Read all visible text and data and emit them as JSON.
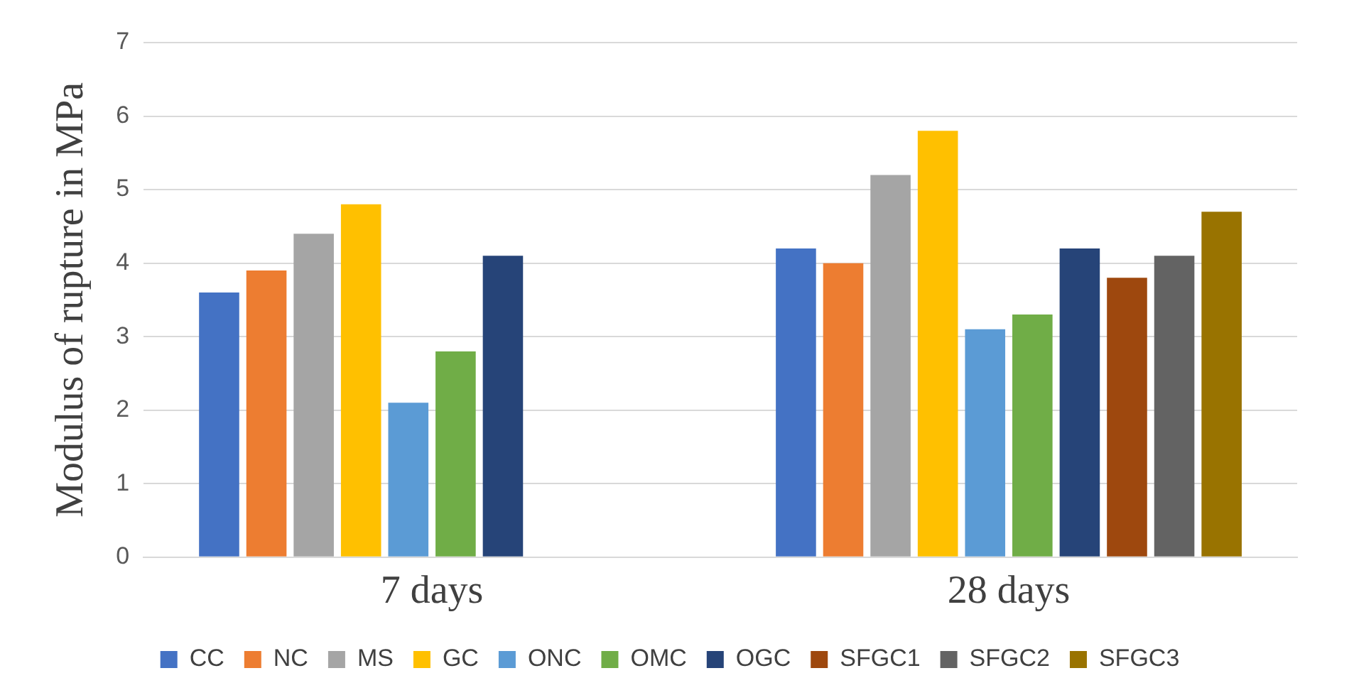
{
  "chart_data": {
    "type": "bar",
    "ylabel": "Modulus of rupture in MPa",
    "categories": [
      "7 days",
      "28 days"
    ],
    "series": [
      {
        "name": "CC",
        "color": "#4472c4",
        "values": [
          3.6,
          4.2
        ]
      },
      {
        "name": "NC",
        "color": "#ed7d31",
        "values": [
          3.9,
          4.0
        ]
      },
      {
        "name": "MS",
        "color": "#a5a5a5",
        "values": [
          4.4,
          5.2
        ]
      },
      {
        "name": "GC",
        "color": "#ffc000",
        "values": [
          4.8,
          5.8
        ]
      },
      {
        "name": "ONC",
        "color": "#5b9bd5",
        "values": [
          2.1,
          3.1
        ]
      },
      {
        "name": "OMC",
        "color": "#70ad47",
        "values": [
          2.8,
          3.3
        ]
      },
      {
        "name": "OGC",
        "color": "#264478",
        "values": [
          4.1,
          4.2
        ]
      },
      {
        "name": "SFGC1",
        "color": "#9e480e",
        "values": [
          null,
          3.8
        ]
      },
      {
        "name": "SFGC2",
        "color": "#636363",
        "values": [
          null,
          4.1
        ]
      },
      {
        "name": "SFGC3",
        "color": "#997300",
        "values": [
          null,
          4.7
        ]
      }
    ],
    "ylim": [
      0,
      7
    ],
    "yticks": [
      0,
      1,
      2,
      3,
      4,
      5,
      6,
      7
    ],
    "grid": "y",
    "legend": "bottom"
  }
}
